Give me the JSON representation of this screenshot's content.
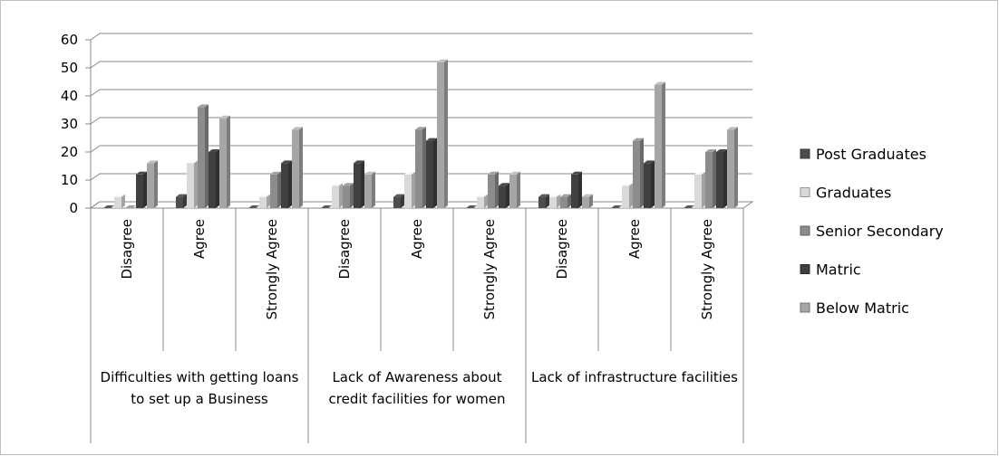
{
  "chart_data": {
    "type": "bar3d",
    "groups": [
      {
        "label": "Difficulties with getting loans to set up a Business",
        "categories": [
          "Disagree",
          "Agree",
          "Strongly Agree"
        ]
      },
      {
        "label": "Lack of Awareness about credit facilities for women",
        "categories": [
          "Disagree",
          "Agree",
          "Strongly Agree"
        ]
      },
      {
        "label": "Lack of infrastructure facilities",
        "categories": [
          "Disagree",
          "Agree",
          "Strongly Agree"
        ]
      }
    ],
    "series": [
      {
        "name": "Post Graduates",
        "color": "#4d4d4d",
        "values": [
          0,
          4,
          0,
          0,
          4,
          0,
          4,
          0,
          0
        ]
      },
      {
        "name": "Graduates",
        "color": "#d9d9d9",
        "values": [
          4,
          16,
          4,
          8,
          12,
          4,
          4,
          8,
          12
        ]
      },
      {
        "name": "Senior Secondary",
        "color": "#8c8c8c",
        "values": [
          0,
          36,
          12,
          8,
          28,
          12,
          4,
          24,
          20
        ]
      },
      {
        "name": "Matric",
        "color": "#404040",
        "values": [
          12,
          20,
          16,
          16,
          24,
          8,
          12,
          16,
          20
        ]
      },
      {
        "name": "Below Matric",
        "color": "#a6a6a6",
        "values": [
          16,
          32,
          28,
          12,
          52,
          12,
          4,
          44,
          28
        ]
      }
    ],
    "ylim": [
      0,
      60
    ],
    "yticks": [
      0,
      10,
      20,
      30,
      40,
      50,
      60
    ],
    "grid": true,
    "legend": "right"
  }
}
